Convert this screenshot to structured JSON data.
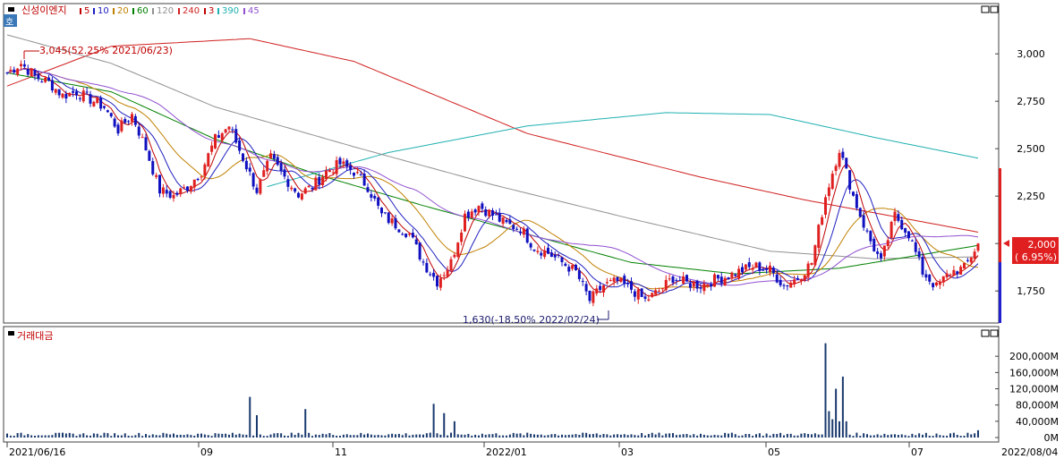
{
  "price_panel": {
    "stock_name": "신성이엔지",
    "badge": "호",
    "legend": [
      {
        "label": "5",
        "color": "#c00000"
      },
      {
        "label": "10",
        "color": "#2020c0"
      },
      {
        "label": "20",
        "color": "#c08000"
      },
      {
        "label": "60",
        "color": "#008000"
      },
      {
        "label": "120",
        "color": "#909090"
      },
      {
        "label": "240",
        "color": "#d02020"
      },
      {
        "label": "3",
        "color": "#c00000"
      },
      {
        "label": "390",
        "color": "#20b0b0"
      },
      {
        "label": "45",
        "color": "#9050d0"
      }
    ],
    "high_annotation": "3,045(52.25% 2021/06/23)",
    "low_annotation": "1,630(-18.50% 2022/02/24)",
    "current_price": "2,000",
    "current_change": "( 6.95%)"
  },
  "volume_panel": {
    "title": "거래대금"
  },
  "x_axis": {
    "labels": [
      "2021/06/16",
      "09",
      "11",
      "2022/01",
      "03",
      "05",
      "07",
      "2022/08/04"
    ]
  },
  "chart_data": [
    {
      "type": "candlestick",
      "title": "신성이엔지",
      "y_ticks": [
        "3,000",
        "2,750",
        "2,500",
        "2,250",
        "2,000",
        "1,750"
      ],
      "y_tick_values": [
        3000,
        2750,
        2500,
        2250,
        2000,
        1750
      ],
      "ylim": [
        1600,
        3180
      ],
      "high": {
        "value": 3045,
        "pct": 52.25,
        "date": "2021/06/23"
      },
      "low": {
        "value": 1630,
        "pct": -18.5,
        "date": "2022/02/24"
      },
      "last": {
        "value": 2000,
        "pct": 6.95,
        "date": "2022/08/04"
      },
      "close_path": [
        [
          0,
          2900
        ],
        [
          4,
          2950
        ],
        [
          8,
          2880
        ],
        [
          12,
          2850
        ],
        [
          16,
          2780
        ],
        [
          20,
          2800
        ],
        [
          24,
          2760
        ],
        [
          28,
          2720
        ],
        [
          32,
          2600
        ],
        [
          36,
          2680
        ],
        [
          40,
          2500
        ],
        [
          44,
          2280
        ],
        [
          48,
          2250
        ],
        [
          52,
          2300
        ],
        [
          56,
          2380
        ],
        [
          60,
          2550
        ],
        [
          64,
          2620
        ],
        [
          68,
          2450
        ],
        [
          72,
          2280
        ],
        [
          76,
          2450
        ],
        [
          80,
          2350
        ],
        [
          84,
          2260
        ],
        [
          88,
          2300
        ],
        [
          92,
          2380
        ],
        [
          96,
          2420
        ],
        [
          100,
          2380
        ],
        [
          104,
          2300
        ],
        [
          108,
          2150
        ],
        [
          112,
          2100
        ],
        [
          116,
          2050
        ],
        [
          120,
          1900
        ],
        [
          124,
          1800
        ],
        [
          128,
          1900
        ],
        [
          132,
          2150
        ],
        [
          136,
          2200
        ],
        [
          140,
          2150
        ],
        [
          144,
          2100
        ],
        [
          148,
          2080
        ],
        [
          152,
          1980
        ],
        [
          156,
          1950
        ],
        [
          160,
          1900
        ],
        [
          164,
          1850
        ],
        [
          168,
          1700
        ],
        [
          172,
          1780
        ],
        [
          176,
          1800
        ],
        [
          180,
          1760
        ],
        [
          184,
          1700
        ],
        [
          188,
          1750
        ],
        [
          192,
          1820
        ],
        [
          196,
          1790
        ],
        [
          200,
          1780
        ],
        [
          204,
          1810
        ],
        [
          208,
          1830
        ],
        [
          212,
          1860
        ],
        [
          216,
          1880
        ],
        [
          220,
          1860
        ],
        [
          224,
          1780
        ],
        [
          228,
          1820
        ],
        [
          232,
          1900
        ],
        [
          236,
          2250
        ],
        [
          240,
          2500
        ],
        [
          244,
          2250
        ],
        [
          248,
          2050
        ],
        [
          252,
          1900
        ],
        [
          256,
          2150
        ],
        [
          260,
          2050
        ],
        [
          264,
          1850
        ],
        [
          268,
          1770
        ],
        [
          272,
          1850
        ],
        [
          276,
          1870
        ],
        [
          280,
          2000
        ]
      ],
      "moving_averages": [
        {
          "name": "240",
          "color": "#d02020",
          "points": [
            [
              0,
              2830
            ],
            [
              30,
              3040
            ],
            [
              70,
              3080
            ],
            [
              100,
              2960
            ],
            [
              150,
              2580
            ],
            [
              200,
              2350
            ],
            [
              230,
              2230
            ],
            [
              280,
              2060
            ]
          ]
        },
        {
          "name": "390",
          "color": "#20b0b0",
          "points": [
            [
              75,
              2300
            ],
            [
              110,
              2480
            ],
            [
              150,
              2620
            ],
            [
              190,
              2690
            ],
            [
              220,
              2680
            ],
            [
              250,
              2560
            ],
            [
              280,
              2450
            ]
          ]
        },
        {
          "name": "120",
          "color": "#909090",
          "points": [
            [
              0,
              3100
            ],
            [
              30,
              2950
            ],
            [
              60,
              2720
            ],
            [
              100,
              2510
            ],
            [
              140,
              2310
            ],
            [
              180,
              2130
            ],
            [
              220,
              1960
            ],
            [
              250,
              1920
            ],
            [
              280,
              1930
            ]
          ]
        },
        {
          "name": "60",
          "color": "#008000",
          "points": [
            [
              0,
              2900
            ],
            [
              30,
              2800
            ],
            [
              60,
              2550
            ],
            [
              90,
              2360
            ],
            [
              120,
              2200
            ],
            [
              150,
              2050
            ],
            [
              180,
              1900
            ],
            [
              210,
              1840
            ],
            [
              240,
              1870
            ],
            [
              280,
              1990
            ]
          ]
        }
      ]
    },
    {
      "type": "bar",
      "title": "거래대금",
      "unit": "M",
      "y_ticks": [
        "200,000M",
        "160,000M",
        "120,000M",
        "80,000M",
        "40,000M",
        "0M"
      ],
      "y_tick_values": [
        200000,
        160000,
        120000,
        80000,
        40000,
        0
      ],
      "ylim": [
        0,
        240000
      ],
      "spikes": [
        {
          "i": 70,
          "value": 100000
        },
        {
          "i": 72,
          "value": 55000
        },
        {
          "i": 86,
          "value": 70000
        },
        {
          "i": 123,
          "value": 83000
        },
        {
          "i": 126,
          "value": 60000
        },
        {
          "i": 129,
          "value": 40000
        },
        {
          "i": 236,
          "value": 232000
        },
        {
          "i": 237,
          "value": 65000
        },
        {
          "i": 239,
          "value": 120000
        },
        {
          "i": 241,
          "value": 150000
        },
        {
          "i": 240,
          "value": 40000
        },
        {
          "i": 238,
          "value": 45000
        },
        {
          "i": 242,
          "value": 40000
        }
      ],
      "baseline_value": 8000,
      "last_value": 18000
    }
  ]
}
